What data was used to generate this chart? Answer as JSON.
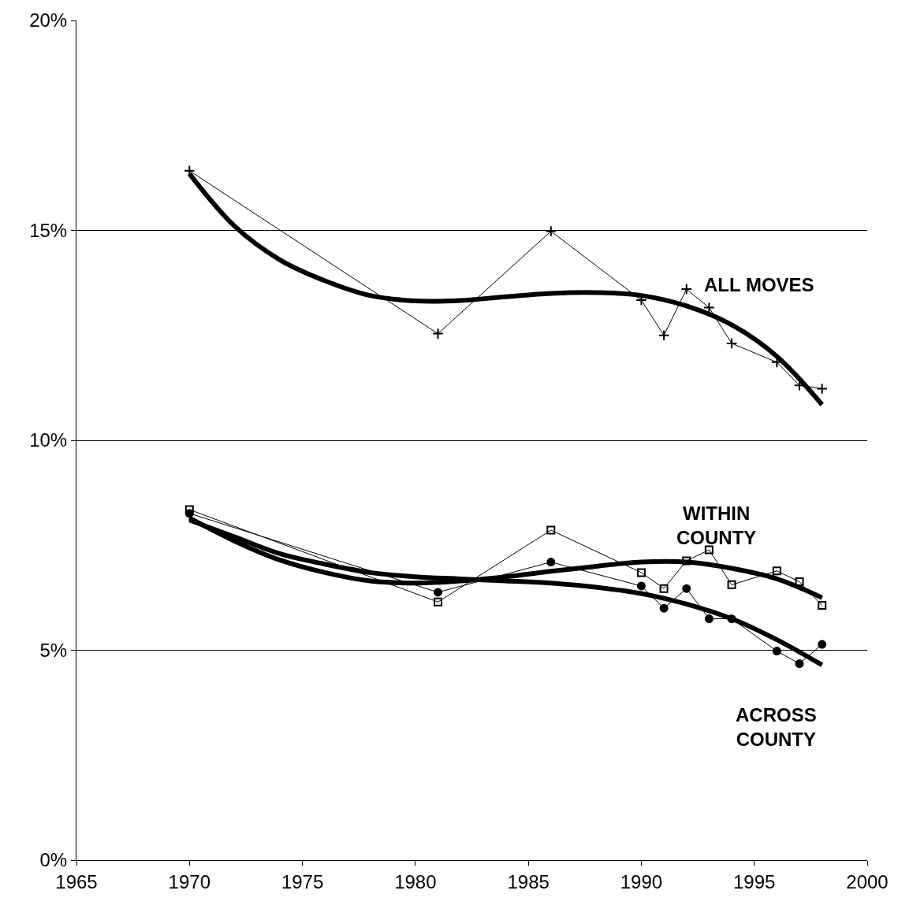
{
  "chart_data": {
    "type": "line",
    "x": [
      1970,
      1981,
      1986,
      1990,
      1991,
      1992,
      1993,
      1994,
      1996,
      1997,
      1998
    ],
    "series": [
      {
        "name": "ALL MOVES",
        "color": "#000000",
        "marker": "cross",
        "values": [
          16.42,
          12.54,
          14.98,
          13.34,
          12.5,
          13.6,
          13.16,
          12.31,
          11.86,
          11.31,
          11.23
        ]
      },
      {
        "name": "WITHIN\nCOUNTY",
        "color": "#000000",
        "marker": "square",
        "values": [
          8.35,
          6.15,
          7.86,
          6.85,
          6.47,
          7.13,
          7.39,
          6.56,
          6.89,
          6.63,
          6.07
        ]
      },
      {
        "name": "ACROSS\nCOUNTY",
        "color": "#000000",
        "marker": "circle",
        "values": [
          8.26,
          6.38,
          7.1,
          6.53,
          6.0,
          6.47,
          5.75,
          5.75,
          4.98,
          4.68,
          5.14
        ]
      },
      {
        "color": "#000000",
        "marker": "none",
        "x": [
          1970,
          1972,
          1974,
          1976,
          1978,
          1980,
          1982,
          1984,
          1986,
          1988,
          1990,
          1992,
          1994,
          1996,
          1998
        ],
        "values": [
          16.35,
          15.1,
          14.3,
          13.8,
          13.45,
          13.32,
          13.33,
          13.42,
          13.5,
          13.52,
          13.45,
          13.2,
          12.75,
          12.0,
          10.85
        ]
      },
      {
        "color": "#000000",
        "marker": "none",
        "x": [
          1970,
          1972,
          1974,
          1976,
          1978,
          1980,
          1982,
          1984,
          1986,
          1988,
          1990,
          1992,
          1994,
          1996,
          1998
        ],
        "values": [
          8.15,
          7.6,
          7.15,
          6.85,
          6.65,
          6.6,
          6.65,
          6.75,
          6.88,
          7.0,
          7.1,
          7.1,
          6.95,
          6.7,
          6.25
        ]
      },
      {
        "color": "#000000",
        "marker": "none",
        "x": [
          1970,
          1972,
          1974,
          1976,
          1978,
          1980,
          1982,
          1984,
          1986,
          1988,
          1990,
          1992,
          1994,
          1996,
          1998
        ],
        "values": [
          8.1,
          7.7,
          7.3,
          7.05,
          6.85,
          6.75,
          6.7,
          6.65,
          6.6,
          6.5,
          6.35,
          6.1,
          5.75,
          5.25,
          4.65
        ]
      }
    ],
    "xlim": [
      1965,
      2000
    ],
    "xticks": [
      1965,
      1970,
      1975,
      1980,
      1985,
      1990,
      1995,
      2000
    ],
    "ylim": [
      0,
      20
    ],
    "yticks": [
      {
        "value": 0,
        "label": "0%"
      },
      {
        "value": 5,
        "label": "5%"
      },
      {
        "value": 10,
        "label": "10%"
      },
      {
        "value": 15,
        "label": "15%"
      },
      {
        "value": 20,
        "label": "20%"
      }
    ],
    "grid": "y",
    "legend": false,
    "line_style": "solid"
  }
}
